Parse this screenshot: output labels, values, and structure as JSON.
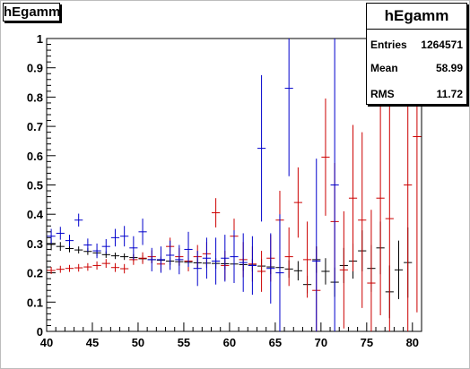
{
  "title": "hEgamm",
  "stats": {
    "title": "hEgamm",
    "rows": [
      {
        "label": "Entries",
        "value": "1264571"
      },
      {
        "label": "Mean",
        "value": "58.99"
      },
      {
        "label": "RMS",
        "value": "11.72"
      }
    ]
  },
  "chart_data": {
    "type": "scatter",
    "title": "hEgamm",
    "xlabel": "",
    "ylabel": "",
    "xlim": [
      40,
      81
    ],
    "ylim": [
      0,
      1
    ],
    "x_ticks": [
      40,
      45,
      50,
      55,
      60,
      65,
      70,
      75,
      80
    ],
    "y_ticks": [
      0,
      0.1,
      0.2,
      0.3,
      0.4,
      0.5,
      0.6,
      0.7,
      0.8,
      0.9,
      1
    ],
    "bin_width": 1,
    "colors": {
      "black": "#000000",
      "red": "#cc0000",
      "blue": "#0000cc"
    },
    "series": [
      {
        "color_key": "black",
        "points": [
          {
            "x": 40.5,
            "y": 0.297,
            "err": 0.02
          },
          {
            "x": 41.5,
            "y": 0.29,
            "err": 0.015
          },
          {
            "x": 42.5,
            "y": 0.283,
            "err": 0.013
          },
          {
            "x": 43.5,
            "y": 0.278,
            "err": 0.012
          },
          {
            "x": 44.5,
            "y": 0.273,
            "err": 0.012
          },
          {
            "x": 45.5,
            "y": 0.268,
            "err": 0.011
          },
          {
            "x": 46.5,
            "y": 0.262,
            "err": 0.011
          },
          {
            "x": 47.5,
            "y": 0.258,
            "err": 0.011
          },
          {
            "x": 48.5,
            "y": 0.255,
            "err": 0.011
          },
          {
            "x": 49.5,
            "y": 0.252,
            "err": 0.012
          },
          {
            "x": 50.5,
            "y": 0.248,
            "err": 0.012
          },
          {
            "x": 51.5,
            "y": 0.245,
            "err": 0.012
          },
          {
            "x": 52.5,
            "y": 0.243,
            "err": 0.013
          },
          {
            "x": 53.5,
            "y": 0.24,
            "err": 0.013
          },
          {
            "x": 54.5,
            "y": 0.238,
            "err": 0.014
          },
          {
            "x": 55.5,
            "y": 0.236,
            "err": 0.015
          },
          {
            "x": 56.5,
            "y": 0.234,
            "err": 0.016
          },
          {
            "x": 57.5,
            "y": 0.233,
            "err": 0.017
          },
          {
            "x": 58.5,
            "y": 0.232,
            "err": 0.018
          },
          {
            "x": 59.5,
            "y": 0.231,
            "err": 0.019
          },
          {
            "x": 60.5,
            "y": 0.23,
            "err": 0.02
          },
          {
            "x": 61.5,
            "y": 0.228,
            "err": 0.021
          },
          {
            "x": 62.5,
            "y": 0.226,
            "err": 0.022
          },
          {
            "x": 63.5,
            "y": 0.223,
            "err": 0.024
          },
          {
            "x": 64.5,
            "y": 0.22,
            "err": 0.025
          },
          {
            "x": 65.5,
            "y": 0.218,
            "err": 0.027
          },
          {
            "x": 66.5,
            "y": 0.213,
            "err": 0.03
          },
          {
            "x": 67.5,
            "y": 0.207,
            "err": 0.033
          },
          {
            "x": 68.5,
            "y": 0.16,
            "err": 0.03
          },
          {
            "x": 69.5,
            "y": 0.245,
            "err": 0.045
          },
          {
            "x": 70.5,
            "y": 0.205,
            "err": 0.045
          },
          {
            "x": 71.5,
            "y": 0.168,
            "err": 0.05
          },
          {
            "x": 72.5,
            "y": 0.225,
            "err": 0.06
          },
          {
            "x": 73.5,
            "y": 0.24,
            "err": 0.06
          },
          {
            "x": 74.5,
            "y": 0.275,
            "err": 0.07
          },
          {
            "x": 75.5,
            "y": 0.215,
            "err": 0.08
          },
          {
            "x": 76.5,
            "y": 0.285,
            "err": 0.09
          },
          {
            "x": 77.5,
            "y": 0.135,
            "err": 0.09
          },
          {
            "x": 78.5,
            "y": 0.21,
            "err": 0.1
          },
          {
            "x": 79.5,
            "y": 0.235,
            "err": 0.12
          }
        ]
      },
      {
        "color_key": "red",
        "points": [
          {
            "x": 40.5,
            "y": 0.208,
            "err": 0.012
          },
          {
            "x": 41.5,
            "y": 0.212,
            "err": 0.012
          },
          {
            "x": 42.5,
            "y": 0.215,
            "err": 0.012
          },
          {
            "x": 43.5,
            "y": 0.217,
            "err": 0.013
          },
          {
            "x": 44.5,
            "y": 0.22,
            "err": 0.013
          },
          {
            "x": 45.5,
            "y": 0.225,
            "err": 0.014
          },
          {
            "x": 46.5,
            "y": 0.232,
            "err": 0.015
          },
          {
            "x": 47.5,
            "y": 0.218,
            "err": 0.015
          },
          {
            "x": 48.5,
            "y": 0.214,
            "err": 0.016
          },
          {
            "x": 49.5,
            "y": 0.245,
            "err": 0.018
          },
          {
            "x": 50.5,
            "y": 0.25,
            "err": 0.02
          },
          {
            "x": 51.5,
            "y": 0.255,
            "err": 0.022
          },
          {
            "x": 52.5,
            "y": 0.23,
            "err": 0.025
          },
          {
            "x": 53.5,
            "y": 0.29,
            "err": 0.03
          },
          {
            "x": 54.5,
            "y": 0.255,
            "err": 0.03
          },
          {
            "x": 55.5,
            "y": 0.24,
            "err": 0.035
          },
          {
            "x": 56.5,
            "y": 0.255,
            "err": 0.04
          },
          {
            "x": 57.5,
            "y": 0.265,
            "err": 0.04
          },
          {
            "x": 58.5,
            "y": 0.405,
            "err": 0.05
          },
          {
            "x": 59.5,
            "y": 0.225,
            "err": 0.05
          },
          {
            "x": 60.5,
            "y": 0.325,
            "err": 0.06
          },
          {
            "x": 61.5,
            "y": 0.245,
            "err": 0.06
          },
          {
            "x": 62.5,
            "y": 0.23,
            "err": 0.06
          },
          {
            "x": 63.5,
            "y": 0.205,
            "err": 0.07
          },
          {
            "x": 64.5,
            "y": 0.25,
            "err": 0.08
          },
          {
            "x": 65.5,
            "y": 0.38,
            "err": 0.1
          },
          {
            "x": 66.5,
            "y": 0.255,
            "err": 0.1
          },
          {
            "x": 67.5,
            "y": 0.44,
            "err": 0.12
          },
          {
            "x": 68.5,
            "y": 0.245,
            "err": 0.13
          },
          {
            "x": 69.5,
            "y": 0.14,
            "err": 0.15
          },
          {
            "x": 70.5,
            "y": 0.595,
            "err": 0.2
          },
          {
            "x": 71.5,
            "y": 0.375,
            "err": 0.2
          },
          {
            "x": 72.5,
            "y": 0.21,
            "err": 0.2
          },
          {
            "x": 73.5,
            "y": 0.455,
            "err": 0.25
          },
          {
            "x": 74.5,
            "y": 0.38,
            "err": 0.3
          },
          {
            "x": 75.5,
            "y": 0.165,
            "err": 0.25
          },
          {
            "x": 76.5,
            "y": 0.455,
            "err": 0.4
          },
          {
            "x": 77.5,
            "y": 0.385,
            "err": 0.4
          },
          {
            "x": 79.5,
            "y": 0.5,
            "err": 0.5
          },
          {
            "x": 80.5,
            "y": 0.665,
            "err": 0.6
          }
        ]
      },
      {
        "color_key": "blue",
        "points": [
          {
            "x": 40.5,
            "y": 0.325,
            "err": 0.025
          },
          {
            "x": 41.5,
            "y": 0.335,
            "err": 0.022
          },
          {
            "x": 42.5,
            "y": 0.31,
            "err": 0.02
          },
          {
            "x": 43.5,
            "y": 0.38,
            "err": 0.022
          },
          {
            "x": 44.5,
            "y": 0.295,
            "err": 0.022
          },
          {
            "x": 45.5,
            "y": 0.275,
            "err": 0.025
          },
          {
            "x": 46.5,
            "y": 0.29,
            "err": 0.025
          },
          {
            "x": 47.5,
            "y": 0.32,
            "err": 0.03
          },
          {
            "x": 48.5,
            "y": 0.325,
            "err": 0.035
          },
          {
            "x": 49.5,
            "y": 0.285,
            "err": 0.04
          },
          {
            "x": 50.5,
            "y": 0.34,
            "err": 0.045
          },
          {
            "x": 51.5,
            "y": 0.245,
            "err": 0.04
          },
          {
            "x": 52.5,
            "y": 0.245,
            "err": 0.045
          },
          {
            "x": 53.5,
            "y": 0.26,
            "err": 0.05
          },
          {
            "x": 54.5,
            "y": 0.245,
            "err": 0.05
          },
          {
            "x": 55.5,
            "y": 0.28,
            "err": 0.06
          },
          {
            "x": 56.5,
            "y": 0.215,
            "err": 0.06
          },
          {
            "x": 57.5,
            "y": 0.25,
            "err": 0.07
          },
          {
            "x": 58.5,
            "y": 0.24,
            "err": 0.08
          },
          {
            "x": 59.5,
            "y": 0.25,
            "err": 0.08
          },
          {
            "x": 60.5,
            "y": 0.255,
            "err": 0.09
          },
          {
            "x": 61.5,
            "y": 0.235,
            "err": 0.1
          },
          {
            "x": 62.5,
            "y": 0.225,
            "err": 0.1
          },
          {
            "x": 63.5,
            "y": 0.625,
            "err": 0.25
          },
          {
            "x": 64.5,
            "y": 0.215,
            "err": 0.12
          },
          {
            "x": 65.5,
            "y": 0.2,
            "err": 0.2
          },
          {
            "x": 66.5,
            "y": 0.83,
            "err": 0.3
          },
          {
            "x": 69.5,
            "y": 0.24,
            "err": 0.35
          },
          {
            "x": 71.5,
            "y": 0.5,
            "err": 0.5
          }
        ]
      }
    ]
  }
}
